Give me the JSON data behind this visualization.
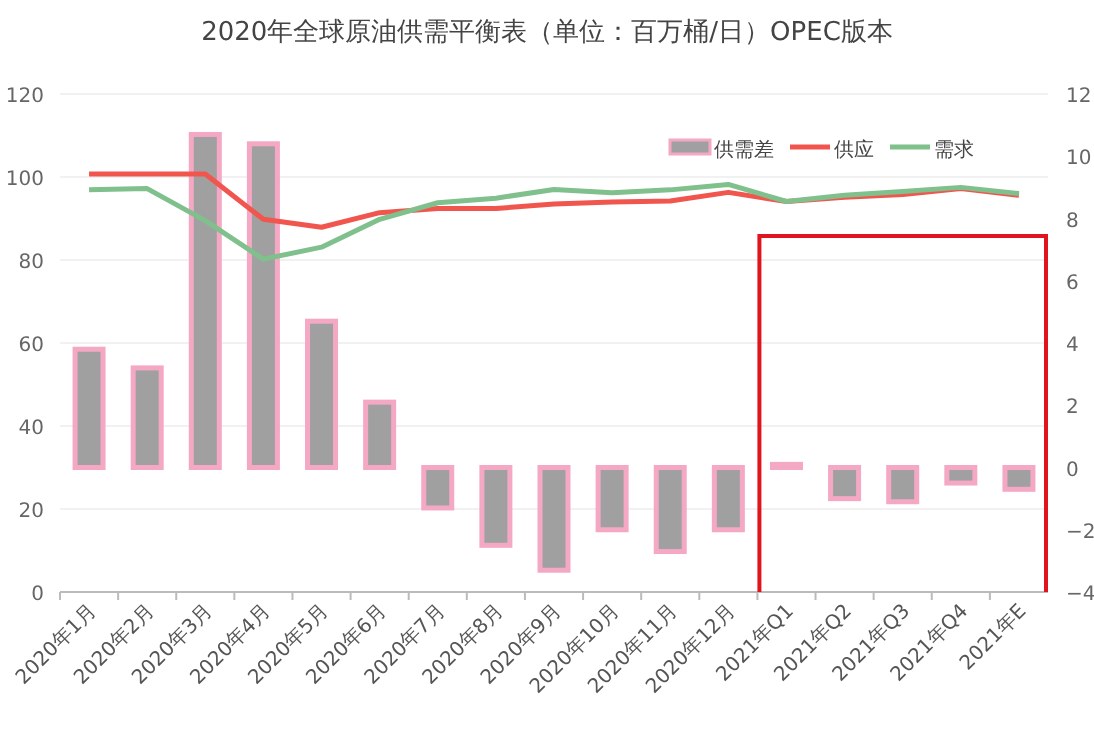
{
  "chart_data": {
    "type": "bar",
    "title": "2020年全球原油供需平衡表（单位：百万桶/日）OPEC版本",
    "categories": [
      "2020年1月",
      "2020年2月",
      "2020年3月",
      "2020年4月",
      "2020年5月",
      "2020年6月",
      "2020年7月",
      "2020年8月",
      "2020年9月",
      "2020年10月",
      "2020年11月",
      "2020年12月",
      "2021年Q1",
      "2021年Q2",
      "2021年Q3",
      "2021年Q4",
      "2021年E"
    ],
    "series": [
      {
        "name": "供需差",
        "type": "bar",
        "axis": "y2",
        "color": "#a0a0a0",
        "values": [
          3.8,
          3.2,
          10.7,
          10.4,
          4.7,
          2.1,
          -1.3,
          -2.5,
          -3.3,
          -2.0,
          -2.7,
          -2.0,
          0.1,
          -1.0,
          -1.1,
          -0.5,
          -0.7
        ]
      },
      {
        "name": "供应",
        "type": "line",
        "color": "#f0564e",
        "values": [
          100.7,
          100.7,
          100.7,
          89.8,
          87.9,
          91.4,
          92.4,
          92.4,
          93.5,
          94.0,
          94.2,
          96.3,
          94.1,
          95.1,
          95.8,
          97.2,
          95.6
        ]
      },
      {
        "name": "需求",
        "type": "line",
        "color": "#80c08c",
        "values": [
          96.9,
          97.2,
          89.5,
          80.2,
          83.1,
          89.8,
          93.8,
          94.9,
          97.0,
          96.2,
          96.9,
          98.2,
          94.1,
          95.6,
          96.5,
          97.5,
          96.0
        ]
      }
    ],
    "ylim": [
      0,
      120
    ],
    "yticks": [
      0,
      20,
      40,
      60,
      80,
      100,
      120
    ],
    "y2lim": [
      -4,
      12
    ],
    "y2ticks": [
      -4,
      -2,
      0,
      2,
      4,
      6,
      8,
      10,
      12
    ],
    "grid": "y",
    "legend": "top right"
  }
}
